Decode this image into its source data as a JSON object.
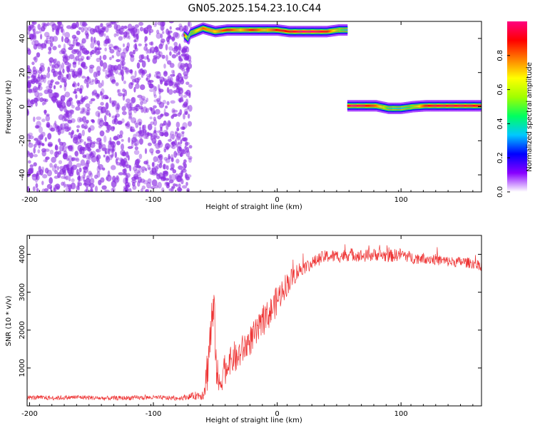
{
  "title": "GN05.2025.154.23.10.C44",
  "chart_data": [
    {
      "type": "heatmap",
      "xlabel": "Height of straight line (km)",
      "ylabel": "Frequency (Hz)",
      "xlim": [
        -202,
        165
      ],
      "ylim": [
        -50,
        50
      ],
      "x_ticks": [
        -200,
        -100,
        0,
        100
      ],
      "y_ticks": [
        -40,
        -20,
        0,
        20,
        40
      ],
      "colorbar": {
        "label": "Normalized spectral amplitude",
        "range": [
          0,
          1
        ],
        "ticks": [
          "0.0",
          "0.2",
          "0.4",
          "0.6",
          "0.8"
        ],
        "colormap": [
          "#ffffff",
          "#8800ff",
          "#0000ff",
          "#00c8ff",
          "#00ff60",
          "#a0ff00",
          "#ffff00",
          "#ff8000",
          "#ff0000",
          "#ff0080"
        ]
      },
      "regions": [
        {
          "name": "noise",
          "x_range": [
            -202,
            -70
          ],
          "y_range": [
            -50,
            50
          ],
          "amplitude": [
            0.05,
            0.15
          ]
        },
        {
          "name": "upper line",
          "x": [
            -75,
            -72,
            -70,
            -60,
            -50,
            -40,
            -30,
            -20,
            -10,
            0,
            10,
            20,
            30,
            40,
            50,
            57
          ],
          "y": [
            42,
            40,
            43,
            46,
            44,
            45,
            45,
            45,
            45,
            45,
            44,
            44,
            44,
            44,
            45,
            45
          ],
          "amplitude": [
            0.9,
            0.3,
            0.4,
            0.8,
            0.7,
            0.9,
            0.7,
            0.9,
            0.7,
            0.9,
            0.9,
            1.0,
            1.0,
            0.9,
            0.5,
            0.3
          ]
        },
        {
          "name": "lower line",
          "x": [
            57,
            60,
            70,
            80,
            90,
            100,
            110,
            120,
            130,
            140,
            150,
            165
          ],
          "y": [
            0.5,
            0.5,
            0.5,
            0.5,
            -1,
            -1,
            0,
            0.5,
            0.5,
            0.5,
            0.5,
            0.5
          ],
          "amplitude": [
            0.9,
            1.0,
            0.95,
            0.8,
            0.4,
            0.35,
            0.5,
            0.9,
            0.95,
            0.95,
            0.95,
            0.9
          ]
        }
      ]
    },
    {
      "type": "line",
      "xlabel": "Height of straight line (km)",
      "ylabel": "SNR (10 * v/v)",
      "xlim": [
        -202,
        165
      ],
      "ylim": [
        0,
        4500
      ],
      "x_ticks": [
        -200,
        -100,
        0,
        100
      ],
      "y_ticks": [
        1000,
        2000,
        3000,
        4000
      ],
      "color": "#ee3333",
      "series": [
        {
          "x": [
            -202,
            -180,
            -160,
            -140,
            -120,
            -100,
            -80,
            -70,
            -60,
            -57,
            -55,
            -53,
            -51,
            -49,
            -47,
            -45,
            -43,
            -41,
            -39,
            -37,
            -35,
            -33,
            -30,
            -25,
            -20,
            -15,
            -10,
            -5,
            0,
            5,
            10,
            15,
            20,
            25,
            30,
            35,
            40,
            50,
            60,
            70,
            80,
            90,
            100,
            110,
            120,
            130,
            140,
            150,
            160,
            165
          ],
          "y": [
            220,
            210,
            230,
            200,
            210,
            220,
            200,
            250,
            300,
            800,
            1500,
            2200,
            2500,
            1000,
            500,
            700,
            1100,
            900,
            1300,
            1100,
            1350,
            1200,
            1400,
            1600,
            1800,
            2000,
            2300,
            2500,
            2800,
            3100,
            3300,
            3500,
            3650,
            3700,
            3800,
            3900,
            3950,
            3950,
            4000,
            3950,
            4000,
            3950,
            4000,
            3900,
            3900,
            3850,
            3800,
            3800,
            3750,
            3700
          ],
          "noise": [
            60,
            60,
            60,
            60,
            60,
            60,
            60,
            80,
            150,
            600,
            700,
            700,
            600,
            500,
            400,
            400,
            400,
            400,
            400,
            400,
            400,
            400,
            400,
            400,
            400,
            400,
            400,
            400,
            400,
            350,
            300,
            250,
            200,
            180,
            170,
            170,
            170,
            170,
            170,
            170,
            170,
            170,
            170,
            150,
            150,
            150,
            140,
            140,
            140,
            140
          ]
        }
      ]
    }
  ]
}
